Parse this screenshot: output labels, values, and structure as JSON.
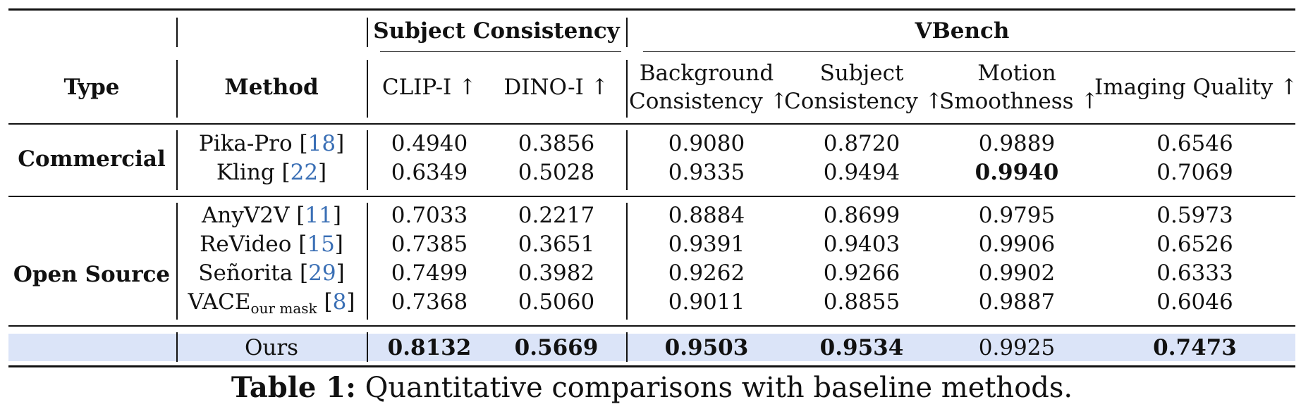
{
  "table": {
    "header": {
      "type": "Type",
      "method": "Method",
      "group_subject": "Subject Consistency",
      "group_vbench": "VBench",
      "clip_i": "CLIP-I ↑",
      "dino_i": "DINO-I ↑",
      "bg_line1": "Background",
      "bg_line2": "Consistency ↑",
      "subj_line1": "Subject",
      "subj_line2": "Consistency ↑",
      "motion_line1": "Motion",
      "motion_line2": "Smoothness ↑",
      "imaging": "Imaging Quality ↑"
    },
    "groups": {
      "commercial": "Commercial",
      "open_source": "Open Source"
    },
    "rows": [
      {
        "name": "Pika-Pro",
        "ref": "18",
        "sub": "",
        "v": [
          "0.4940",
          "0.3856",
          "0.9080",
          "0.8720",
          "0.9889",
          "0.6546"
        ]
      },
      {
        "name": "Kling",
        "ref": "22",
        "sub": "",
        "v": [
          "0.6349",
          "0.5028",
          "0.9335",
          "0.9494",
          "0.9940",
          "0.7069"
        ]
      },
      {
        "name": "AnyV2V",
        "ref": "11",
        "sub": "",
        "v": [
          "0.7033",
          "0.2217",
          "0.8884",
          "0.8699",
          "0.9795",
          "0.5973"
        ]
      },
      {
        "name": "ReVideo",
        "ref": "15",
        "sub": "",
        "v": [
          "0.7385",
          "0.3651",
          "0.9391",
          "0.9403",
          "0.9906",
          "0.6526"
        ]
      },
      {
        "name": "Señorita",
        "ref": "29",
        "sub": "",
        "v": [
          "0.7499",
          "0.3982",
          "0.9262",
          "0.9266",
          "0.9902",
          "0.6333"
        ]
      },
      {
        "name": "VACE",
        "ref": "8",
        "sub": "our mask",
        "v": [
          "0.7368",
          "0.5060",
          "0.9011",
          "0.8855",
          "0.9887",
          "0.6046"
        ]
      },
      {
        "name": "Ours",
        "ref": "",
        "sub": "",
        "v": [
          "0.8132",
          "0.5669",
          "0.9503",
          "0.9534",
          "0.9925",
          "0.7473"
        ]
      }
    ]
  },
  "caption": {
    "label": "Table 1:",
    "text": " Quantitative comparisons with baseline methods."
  }
}
